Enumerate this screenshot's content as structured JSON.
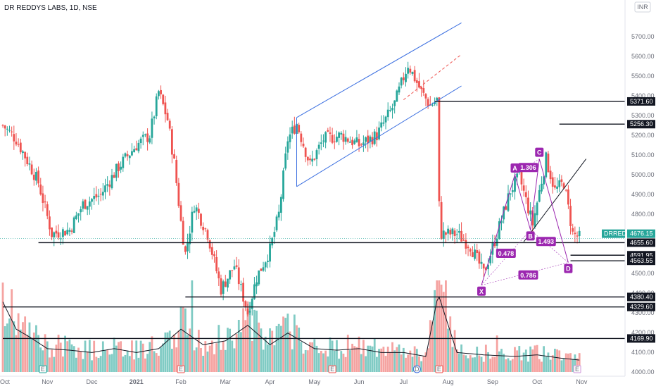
{
  "header": {
    "title": "DR REDDYS LABS, 1D, NSE",
    "currency": "INR"
  },
  "colors": {
    "up": "#26a69a",
    "down": "#ef5350",
    "volume_up": "#80cbc4",
    "volume_down": "#f5a3a1",
    "channel": "#3b6fe0",
    "channel_mid": "#ef5350",
    "harmonic": "#9c27b0",
    "price_tag": "#26a69a",
    "level_tag": "#131722"
  },
  "chart_data": {
    "type": "candlestick",
    "title": "DR REDDYS LABS, 1D, NSE",
    "ylim": [
      4000,
      5800
    ],
    "y_ticks": [
      4000,
      4100,
      4200,
      4300,
      4400,
      4500,
      4600,
      4700,
      4800,
      4900,
      5000,
      5100,
      5200,
      5300,
      5400,
      5500,
      5600,
      5700
    ],
    "x_ticks": [
      "Oct",
      "Nov",
      "Dec",
      "2021",
      "Feb",
      "Mar",
      "Apr",
      "May",
      "Jun",
      "Jul",
      "Aug",
      "Sep",
      "Oct",
      "Nov"
    ],
    "x_range_months": [
      0,
      13.5
    ],
    "x_tick_positions": [
      0,
      1,
      2,
      3,
      4,
      5,
      6,
      7,
      8,
      9,
      10,
      11,
      12,
      13
    ],
    "price_path": [
      [
        0,
        5250
      ],
      [
        0.3,
        5180
      ],
      [
        0.6,
        5050
      ],
      [
        0.8,
        4960
      ],
      [
        1.1,
        4700
      ],
      [
        1.5,
        4720
      ],
      [
        1.8,
        4850
      ],
      [
        2.2,
        4900
      ],
      [
        2.6,
        5040
      ],
      [
        3.0,
        5150
      ],
      [
        3.3,
        5200
      ],
      [
        3.5,
        5420
      ],
      [
        3.7,
        5280
      ],
      [
        3.85,
        5060
      ],
      [
        4.0,
        4760
      ],
      [
        4.1,
        4600
      ],
      [
        4.3,
        4850
      ],
      [
        4.6,
        4700
      ],
      [
        4.9,
        4420
      ],
      [
        5.2,
        4540
      ],
      [
        5.5,
        4300
      ],
      [
        5.7,
        4480
      ],
      [
        6.0,
        4620
      ],
      [
        6.2,
        4800
      ],
      [
        6.4,
        5180
      ],
      [
        6.6,
        5260
      ],
      [
        6.9,
        5050
      ],
      [
        7.2,
        5180
      ],
      [
        7.6,
        5200
      ],
      [
        8.0,
        5150
      ],
      [
        8.4,
        5200
      ],
      [
        8.8,
        5360
      ],
      [
        9.1,
        5560
      ],
      [
        9.4,
        5420
      ],
      [
        9.6,
        5350
      ],
      [
        9.75,
        5380
      ],
      [
        9.78,
        4900
      ],
      [
        9.85,
        4700
      ],
      [
        10.2,
        4700
      ],
      [
        10.5,
        4640
      ],
      [
        10.8,
        4500
      ],
      [
        11.1,
        4700
      ],
      [
        11.4,
        4920
      ],
      [
        11.6,
        4990
      ],
      [
        11.9,
        4750
      ],
      [
        12.2,
        5080
      ],
      [
        12.4,
        4920
      ],
      [
        12.6,
        4960
      ],
      [
        12.8,
        4700
      ],
      [
        13.0,
        4676
      ]
    ],
    "volume": [
      {
        "x": 0.0,
        "v": 0.9
      },
      {
        "x": 0.3,
        "v": 0.55
      },
      {
        "x": 0.6,
        "v": 0.45
      },
      {
        "x": 1.0,
        "v": 0.3
      },
      {
        "x": 1.5,
        "v": 0.28
      },
      {
        "x": 2.0,
        "v": 0.25
      },
      {
        "x": 2.5,
        "v": 0.3
      },
      {
        "x": 3.0,
        "v": 0.25
      },
      {
        "x": 3.5,
        "v": 0.3
      },
      {
        "x": 4.0,
        "v": 0.55
      },
      {
        "x": 4.5,
        "v": 0.35
      },
      {
        "x": 5.0,
        "v": 0.4
      },
      {
        "x": 5.5,
        "v": 0.6
      },
      {
        "x": 6.0,
        "v": 0.35
      },
      {
        "x": 6.4,
        "v": 0.5
      },
      {
        "x": 7.0,
        "v": 0.3
      },
      {
        "x": 7.5,
        "v": 0.28
      },
      {
        "x": 8.0,
        "v": 0.3
      },
      {
        "x": 8.5,
        "v": 0.25
      },
      {
        "x": 9.0,
        "v": 0.25
      },
      {
        "x": 9.5,
        "v": 0.2
      },
      {
        "x": 9.78,
        "v": 1.0
      },
      {
        "x": 10.2,
        "v": 0.25
      },
      {
        "x": 10.8,
        "v": 0.22
      },
      {
        "x": 11.5,
        "v": 0.2
      },
      {
        "x": 12.0,
        "v": 0.22
      },
      {
        "x": 12.5,
        "v": 0.18
      },
      {
        "x": 13.0,
        "v": 0.15
      }
    ],
    "horizontal_levels": [
      {
        "value": 5371.6,
        "label": "5371.60",
        "x_start": 9.7
      },
      {
        "value": 5256.3,
        "label": "5256.30",
        "x_start": 12.5
      },
      {
        "value": 4655.6,
        "label": "4655.60",
        "x_start": 0.8
      },
      {
        "value": 4591.95,
        "label": "4591.95",
        "x_start": 12.75
      },
      {
        "value": 4563.55,
        "label": "4563.55",
        "x_start": 12.75
      },
      {
        "value": 4380.4,
        "label": "4380.40",
        "x_start": 4.1
      },
      {
        "value": 4329.6,
        "label": "4329.60",
        "x_start": 0
      },
      {
        "value": 4169.9,
        "label": "4169.90",
        "x_start": 0
      }
    ],
    "current_price": {
      "label": "DRREDDY",
      "value": "4676.15"
    },
    "channel": {
      "upper": [
        [
          6.6,
          5290
        ],
        [
          10.3,
          5770
        ]
      ],
      "lower": [
        [
          6.6,
          4940
        ],
        [
          10.3,
          5450
        ]
      ],
      "mid": [
        [
          9.0,
          5380
        ],
        [
          10.3,
          5610
        ]
      ]
    },
    "harmonic_pattern": {
      "points": [
        {
          "name": "X",
          "x": 10.75,
          "y": 4440
        },
        {
          "name": "A",
          "x": 11.5,
          "y": 5000
        },
        {
          "name": "B",
          "x": 11.85,
          "y": 4720
        },
        {
          "name": "C",
          "x": 12.05,
          "y": 5080
        },
        {
          "name": "D",
          "x": 12.7,
          "y": 4555
        }
      ],
      "ratios": [
        {
          "label": "1.306",
          "x": 11.8,
          "y": 5035
        },
        {
          "label": "0.478",
          "x": 11.3,
          "y": 4600
        },
        {
          "label": "1.493",
          "x": 12.2,
          "y": 4660
        },
        {
          "label": "0.786",
          "x": 11.8,
          "y": 4490
        }
      ]
    },
    "trendline": [
      [
        11.7,
        4660
      ],
      [
        13.1,
        5080
      ]
    ],
    "event_markers": [
      {
        "label": "E",
        "x": 0.9,
        "color": "#26a69a"
      },
      {
        "label": "E",
        "x": 4.0,
        "color": "#ef5350"
      },
      {
        "label": "E",
        "x": 7.4,
        "color": "#ef5350"
      },
      {
        "label": "D",
        "x": 9.3,
        "color": "#3b6fe0"
      },
      {
        "label": "E",
        "x": 9.8,
        "color": "#ef5350"
      },
      {
        "label": "E",
        "x": 12.9,
        "color": "#ce93d8"
      }
    ]
  }
}
